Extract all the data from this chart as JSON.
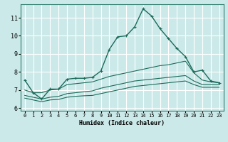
{
  "xlabel": "Humidex (Indice chaleur)",
  "background_color": "#cce9e9",
  "grid_color": "#ffffff",
  "line_color": "#1a6b5a",
  "xlim": [
    -0.5,
    23.5
  ],
  "ylim": [
    5.85,
    11.75
  ],
  "x_ticks": [
    0,
    1,
    2,
    3,
    4,
    5,
    6,
    7,
    8,
    9,
    10,
    11,
    12,
    13,
    14,
    15,
    16,
    17,
    18,
    19,
    20,
    21,
    22,
    23
  ],
  "y_ticks": [
    6,
    7,
    8,
    9,
    10,
    11
  ],
  "line1_y": [
    7.55,
    6.85,
    6.5,
    7.05,
    7.05,
    7.6,
    7.65,
    7.65,
    7.7,
    8.05,
    9.25,
    9.95,
    10.0,
    10.5,
    11.5,
    11.1,
    10.4,
    9.85,
    9.3,
    8.85,
    8.0,
    8.1,
    7.5,
    7.4
  ],
  "line2_y": [
    7.0,
    6.85,
    6.85,
    7.0,
    7.05,
    7.3,
    7.35,
    7.4,
    7.45,
    7.6,
    7.75,
    7.85,
    7.95,
    8.05,
    8.15,
    8.25,
    8.35,
    8.4,
    8.5,
    8.6,
    7.95,
    7.55,
    7.45,
    7.4
  ],
  "line3_y": [
    6.7,
    6.6,
    6.5,
    6.6,
    6.65,
    6.8,
    6.85,
    6.9,
    6.95,
    7.1,
    7.2,
    7.3,
    7.4,
    7.5,
    7.55,
    7.6,
    7.65,
    7.7,
    7.75,
    7.8,
    7.5,
    7.3,
    7.3,
    7.3
  ],
  "line4_y": [
    6.55,
    6.45,
    6.35,
    6.45,
    6.48,
    6.6,
    6.65,
    6.68,
    6.7,
    6.8,
    6.9,
    7.0,
    7.1,
    7.2,
    7.25,
    7.3,
    7.35,
    7.4,
    7.45,
    7.5,
    7.3,
    7.15,
    7.15,
    7.15
  ]
}
